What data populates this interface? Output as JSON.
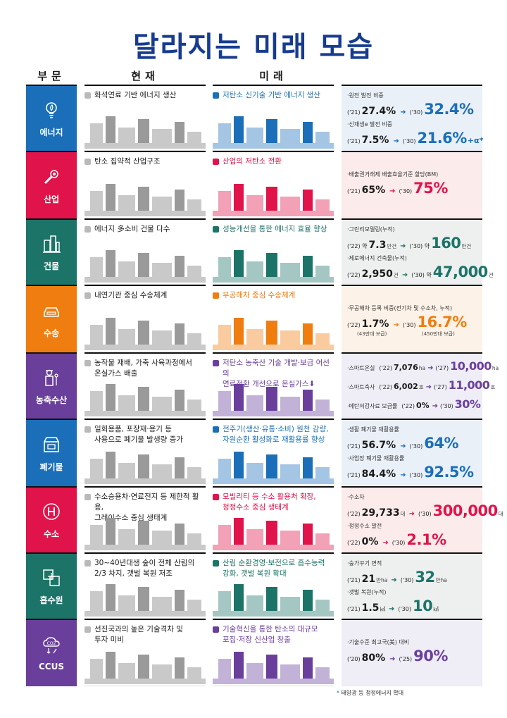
{
  "title": "달라지는 미래 모습",
  "headers": {
    "sector": "부문",
    "present": "현재",
    "future": "미래"
  },
  "rows": [
    {
      "key": "energy",
      "label": "에너지",
      "icon": "lightbulb-leaf-icon",
      "color": "#1b6fb8",
      "stat_bg": "#eaf0f8",
      "present": "화석연료 기반 에너지 생산",
      "future": "저탄소 신기술 기반 에너지 생산",
      "metrics": [
        {
          "label": "·원전 발전 비중",
          "from_year": "('21)",
          "from": "27.4%",
          "from_unit": "",
          "to_year": "('30)",
          "to": "32.4%",
          "to_unit": ""
        },
        {
          "label": "·신재생e 발전 비중",
          "from_year": "('21)",
          "from": "7.5%",
          "from_unit": "",
          "to_year": "('30)",
          "to": "21.6%",
          "to_unit": "+α*"
        }
      ]
    },
    {
      "key": "industry",
      "label": "산업",
      "icon": "wrench-gear-icon",
      "color": "#e0134a",
      "stat_bg": "#fbeceb",
      "present": "탄소 집약적 산업구조",
      "future": "산업의 저탄소 전환",
      "metrics": [
        {
          "label": "·배출권거래제 배출효율기준 할당(BM)",
          "from_year": "('21)",
          "from": "65%",
          "from_unit": "",
          "to_year": "('30)",
          "to": "75%",
          "to_unit": ""
        }
      ]
    },
    {
      "key": "building",
      "label": "건물",
      "icon": "buildings-icon",
      "color": "#1c7468",
      "stat_bg": "#eef0ef",
      "present": "에너지 多소비 건물 다수",
      "future": "성능개선을 통한 에너지 효율 향상",
      "metrics": [
        {
          "label": "·그린리모델링(누적)",
          "from_year": "('22) 약",
          "from": "7.3",
          "from_unit": "만건",
          "to_year": "('30) 약",
          "to": "160",
          "to_unit": "만건"
        },
        {
          "label": "·제로에너지 건축물(누적)",
          "from_year": "('22)",
          "from": "2,950",
          "from_unit": "건",
          "to_year": "('30) 약",
          "to": "47,000",
          "to_unit": "건"
        }
      ]
    },
    {
      "key": "transport",
      "label": "수송",
      "icon": "car-icon",
      "color": "#ef7d0f",
      "stat_bg": "#fdf2e8",
      "present": "내연기관 중심 수송체계",
      "future": "무공해차 중심 수송체계",
      "metrics": [
        {
          "label": "·무공해차 등록 비중(전기차 및 수소차, 누적)",
          "from_year": "('22)",
          "from": "1.7%",
          "from_unit": "",
          "to_year": "('30)",
          "to": "16.7%",
          "to_unit": "",
          "from_note": "(43만대 보급)",
          "to_note": "(450만대 보급)"
        }
      ]
    },
    {
      "key": "agriculture",
      "label": "농축수산",
      "icon": "farmer-icon",
      "color": "#6a3f9c",
      "stat_bg": "#efedf6",
      "present": "농작물 재배, 가축 사육과정에서\n온실가스 배출",
      "future": "저탄소 농축산 기술 개발·보급 어선의\n연료전환 개선으로 온실가스⬇",
      "metrics": [
        {
          "label": "·스마트온실",
          "inline": true,
          "from_year": "('22)",
          "from": "7,076",
          "from_unit": "ha",
          "to_year": "('27)",
          "to": "10,000",
          "to_unit": "ha"
        },
        {
          "label": "·스마트축사",
          "inline": true,
          "from_year": "('22)",
          "from": "6,002",
          "from_unit": "호",
          "to_year": "('27)",
          "to": "11,000",
          "to_unit": "호"
        },
        {
          "label": "·메탄저감사료 보급률",
          "inline": true,
          "from_year": "('22)",
          "from": "0%",
          "from_unit": "",
          "to_year": "('30)",
          "to": "30%",
          "to_unit": ""
        }
      ]
    },
    {
      "key": "waste",
      "label": "폐기물",
      "icon": "recycle-box-icon",
      "color": "#1b6fb8",
      "stat_bg": "#eaf0f8",
      "present": "일회용품, 포장재·용기 등\n사용으로 폐기물 발생량 증가",
      "future": "전주기(생산·유통·소비) 원천 감량,\n자원순환 활성화로 재활용률 향상",
      "metrics": [
        {
          "label": "·생활 폐기물 재활용률",
          "from_year": "('21)",
          "from": "56.7%",
          "from_unit": "",
          "to_year": "('30)",
          "to": "64%",
          "to_unit": ""
        },
        {
          "label": "·사업장 폐기물 재활용률",
          "from_year": "('21)",
          "from": "84.4%",
          "from_unit": "",
          "to_year": "('30)",
          "to": "92.5%",
          "to_unit": ""
        }
      ]
    },
    {
      "key": "hydrogen",
      "label": "수소",
      "icon": "hydrogen-icon",
      "color": "#e0134a",
      "stat_bg": "#fbeceb",
      "present": "수소승용차·연료전지 등 제한적 활용,\n그레이수소 중심 생태계",
      "future": "모빌리티 등 수소 활용처 확장,\n청정수소 중심 생태계",
      "metrics": [
        {
          "label": "·수소차",
          "from_year": "('22)",
          "from": "29,733",
          "from_unit": "대",
          "to_year": "('30)",
          "to": "300,000",
          "to_unit": "대"
        },
        {
          "label": "·청정수소 발전",
          "from_year": "('22)",
          "from": "0%",
          "from_unit": "",
          "to_year": "('30)",
          "to": "2.1%",
          "to_unit": ""
        }
      ]
    },
    {
      "key": "sink",
      "label": "흡수원",
      "icon": "land-grid-icon",
      "color": "#1c7468",
      "stat_bg": "#eef0ef",
      "present": "30~40년대생 숲이 전체 산림의\n2/3 차지, 갯벌 복원 저조",
      "future": "산림 순환경영·보전으로 흡수능력\n강화, 갯벌 복원 확대",
      "metrics": [
        {
          "label": "·숲가꾸기 면적",
          "from_year": "('21)",
          "from": "21",
          "from_unit": "만ha",
          "to_year": "('30)",
          "to": "32",
          "to_unit": "만ha"
        },
        {
          "label": "·갯벌 복원(누적)",
          "from_year": "('21)",
          "from": "1.5",
          "from_unit": "㎢",
          "to_year": "('30)",
          "to": "10",
          "to_unit": "㎢"
        }
      ]
    },
    {
      "key": "ccus",
      "label": "CCUS",
      "icon": "co2-cloud-icon",
      "color": "#6a3f9c",
      "stat_bg": "#efedf6",
      "present": "선진국과의 높은 기술격차 및\n투자 미비",
      "future": "기술혁신을 통한 탄소의 대규모\n포집·저장 신산업 창출",
      "metrics": [
        {
          "label": "·기술수준 최고국(美) 대비",
          "from_year": "('20)",
          "from": "80%",
          "from_unit": "",
          "to_year": "('25)",
          "to": "90%",
          "to_unit": ""
        }
      ]
    }
  ],
  "footnote": {
    "star": "*",
    "text": "태양광 등 청정에너지 확대"
  },
  "arrow_glyph": "➜"
}
